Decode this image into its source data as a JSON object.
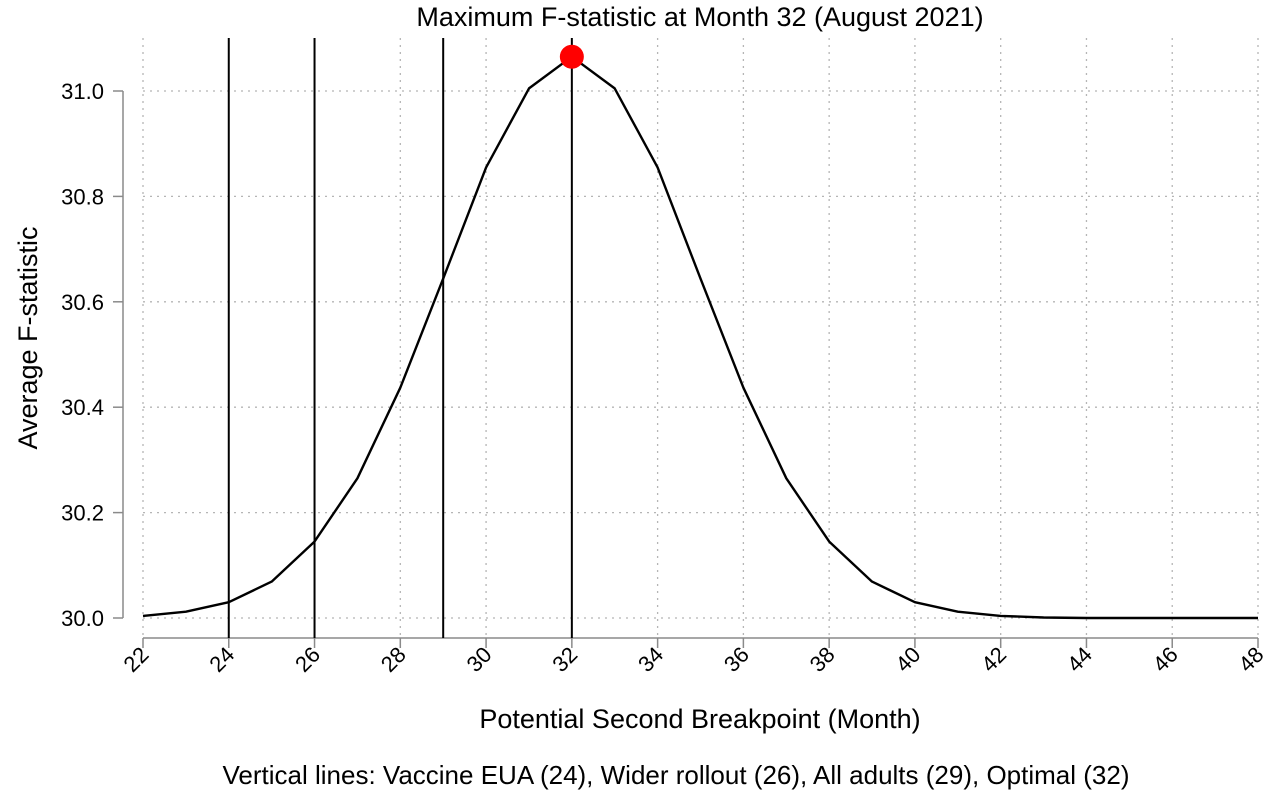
{
  "chart_data": {
    "type": "line",
    "title": "Maximum F-statistic at Month 32 (August 2021)",
    "xlabel": "Potential Second Breakpoint (Month)",
    "ylabel": "Average F-statistic",
    "caption": "Vertical lines: Vaccine EUA (24), Wider rollout (26), All adults (29), Optimal (32)",
    "xlim": [
      22,
      48
    ],
    "ylim": [
      29.97,
      31.1
    ],
    "x_ticks": [
      22,
      24,
      26,
      28,
      30,
      32,
      34,
      36,
      38,
      40,
      42,
      44,
      46,
      48
    ],
    "x_tick_labels": [
      "22",
      "24",
      "26",
      "28",
      "30",
      "32",
      "34",
      "36",
      "38",
      "40",
      "42",
      "44",
      "46",
      "48"
    ],
    "y_ticks": [
      30.0,
      30.2,
      30.4,
      30.6,
      30.8,
      31.0
    ],
    "y_tick_labels": [
      "30.0",
      "30.2",
      "30.4",
      "30.6",
      "30.8",
      "31.0"
    ],
    "grid": true,
    "series": [
      {
        "x": [
          22,
          23,
          24,
          25,
          26,
          27,
          28,
          29,
          30,
          31,
          32,
          33,
          34,
          35,
          36,
          37,
          38,
          39,
          40,
          41,
          42,
          43,
          44,
          45,
          46,
          47,
          48
        ],
        "y": [
          30.004,
          30.012,
          30.03,
          30.069,
          30.145,
          30.265,
          30.437,
          30.644,
          30.855,
          31.005,
          31.065,
          31.005,
          30.855,
          30.644,
          30.437,
          30.265,
          30.145,
          30.069,
          30.03,
          30.012,
          30.004,
          30.001,
          30.0,
          30.0,
          30.0,
          30.0,
          30.0
        ],
        "color": "#000000"
      }
    ],
    "vertical_lines": [
      24,
      26,
      29,
      32
    ],
    "highlight_point": {
      "x": 32,
      "y": 31.065,
      "color": "#ff0000"
    }
  }
}
